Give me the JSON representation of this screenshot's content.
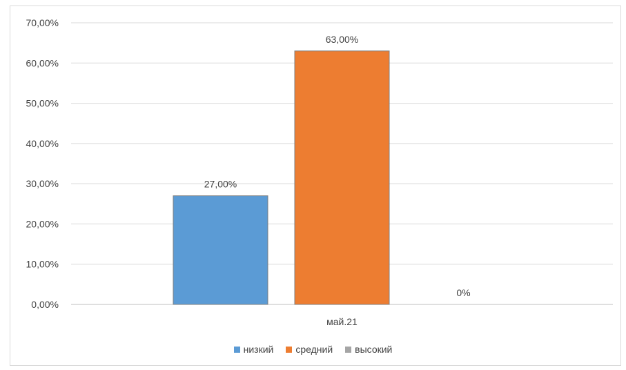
{
  "chart_data": {
    "type": "bar",
    "categories": [
      "май.21"
    ],
    "series": [
      {
        "name": "низкий",
        "values": [
          27
        ],
        "label": "27,00%",
        "color": "#5b9bd5"
      },
      {
        "name": "средний",
        "values": [
          63
        ],
        "label": "63,00%",
        "color": "#ed7d31"
      },
      {
        "name": "высокий",
        "values": [
          0
        ],
        "label": "0%",
        "color": "#a5a5a5"
      }
    ],
    "ylim": [
      0,
      70
    ],
    "yticks": [
      "0,00%",
      "10,00%",
      "20,00%",
      "30,00%",
      "40,00%",
      "50,00%",
      "60,00%",
      "70,00%"
    ],
    "grid": true,
    "legend_position": "bottom",
    "xlabel": "",
    "ylabel": "",
    "title": ""
  }
}
